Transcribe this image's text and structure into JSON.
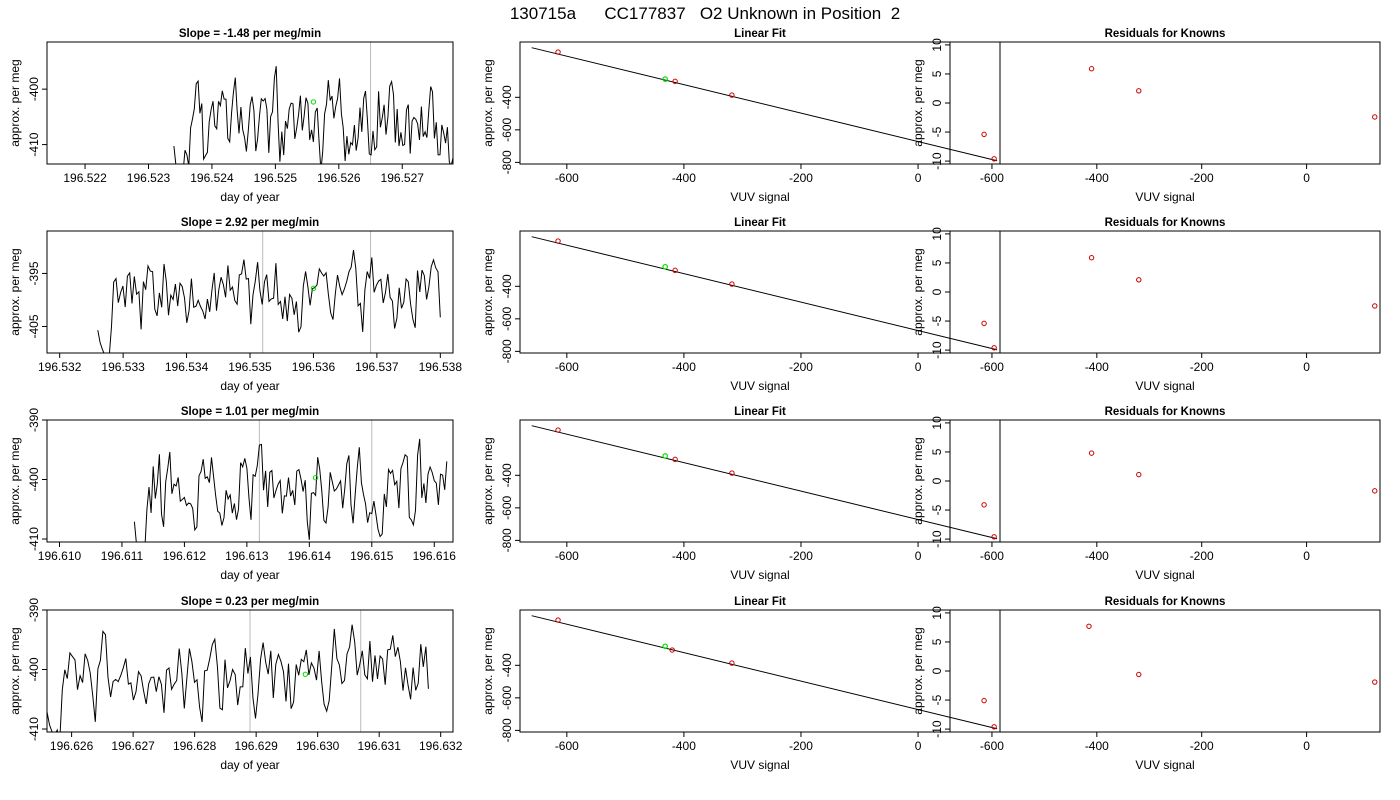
{
  "title": "130715a      CC177837   O2 Unknown in Position  2",
  "colors": {
    "line": "#000000",
    "known_point": "#cc0000",
    "unknown_point": "#00dd00",
    "vertical_marker": "#bbbbbb",
    "frame": "#000000"
  },
  "labels": {
    "time_x": "day of year",
    "y": "approx. per meg",
    "fit_x": "VUV signal",
    "fit_title": "Linear Fit",
    "resid_title": "Residuals for Knowns"
  },
  "chart_data": [
    {
      "type": "line",
      "title": "Slope =  -1.48  per meg/min",
      "xlabel": "day of year",
      "ylabel": "approx. per meg",
      "xlim": [
        196.5214,
        196.5278
      ],
      "ylim": [
        -413.5,
        -391.5
      ],
      "xticks": [
        "196.522",
        "196.523",
        "196.524",
        "196.525",
        "196.526",
        "196.527"
      ],
      "yticks": [
        -410,
        -400
      ],
      "start": 196.5234,
      "end": 196.5278,
      "base": -406,
      "amp": 9,
      "seed": 3,
      "markers": [
        196.5265
      ],
      "unknown_point": [
        196.5256,
        -402.3
      ]
    },
    {
      "type": "line",
      "title": "Slope =  2.92  per meg/min",
      "xlabel": "day of year",
      "ylabel": "approx. per meg",
      "xlim": [
        196.5318,
        196.5382
      ],
      "ylim": [
        -410,
        -387
      ],
      "xticks": [
        "196.532",
        "196.533",
        "196.534",
        "196.535",
        "196.536",
        "196.537",
        "196.538"
      ],
      "yticks": [
        -405,
        -395
      ],
      "start": 196.5326,
      "end": 196.538,
      "base": -399,
      "amp": 8,
      "seed": 7,
      "markers": [
        196.5352,
        196.5369
      ],
      "unknown_point": [
        196.536,
        -397.8
      ]
    },
    {
      "type": "line",
      "title": "Slope =  1.01  per meg/min",
      "xlabel": "day of year",
      "ylabel": "approx. per meg",
      "xlim": [
        196.6098,
        196.6163
      ],
      "ylim": [
        -410.5,
        -390
      ],
      "xticks": [
        "196.610",
        "196.611",
        "196.612",
        "196.613",
        "196.614",
        "196.615",
        "196.616"
      ],
      "yticks": [
        -410,
        -400,
        -390
      ],
      "start": 196.6112,
      "end": 196.6162,
      "base": -401.5,
      "amp": 8,
      "seed": 11,
      "markers": [
        196.6132,
        196.615
      ],
      "unknown_point": [
        196.6141,
        -399.7
      ]
    },
    {
      "type": "line",
      "title": "Slope =  0.23  per meg/min",
      "xlabel": "day of year",
      "ylabel": "approx. per meg",
      "xlim": [
        196.6256,
        196.6322
      ],
      "ylim": [
        -410.5,
        -390
      ],
      "xticks": [
        "196.626",
        "196.627",
        "196.628",
        "196.629",
        "196.630",
        "196.631",
        "196.632"
      ],
      "yticks": [
        -410,
        -400,
        -390
      ],
      "start": 196.6256,
      "end": 196.6318,
      "base": -400.5,
      "amp": 8,
      "seed": 19,
      "markers": [
        196.6289,
        196.6307
      ],
      "unknown_point": [
        196.6298,
        -400.8
      ]
    },
    {
      "type": "scatter",
      "title": "Linear Fit",
      "xlabel": "VUV signal",
      "ylabel": "approx. per meg",
      "xlim": [
        -680,
        140
      ],
      "ylim": [
        -810,
        -60
      ],
      "xticks": [
        -600,
        -400,
        -200,
        0
      ],
      "yticks": [
        -800,
        -600,
        -400
      ],
      "fit_line": [
        [
          -660,
          -95
        ],
        [
          135,
          -790
        ]
      ],
      "known_points": [
        [
          -615,
          -122
        ],
        [
          -415,
          -302
        ],
        [
          -318,
          -386
        ],
        [
          130,
          -778
        ]
      ],
      "unknown_points": [
        [
          -432,
          -288
        ]
      ]
    },
    {
      "type": "scatter",
      "title": "Linear Fit",
      "xlabel": "VUV signal",
      "ylabel": "approx. per meg",
      "xlim": [
        -680,
        140
      ],
      "ylim": [
        -810,
        -60
      ],
      "xticks": [
        -600,
        -400,
        -200,
        0
      ],
      "yticks": [
        -800,
        -600,
        -400
      ],
      "fit_line": [
        [
          -660,
          -95
        ],
        [
          135,
          -790
        ]
      ],
      "known_points": [
        [
          -615,
          -122
        ],
        [
          -415,
          -302
        ],
        [
          -318,
          -386
        ],
        [
          130,
          -778
        ]
      ],
      "unknown_points": [
        [
          -432,
          -280
        ]
      ]
    },
    {
      "type": "scatter",
      "title": "Linear Fit",
      "xlabel": "VUV signal",
      "ylabel": "approx. per meg",
      "xlim": [
        -680,
        140
      ],
      "ylim": [
        -810,
        -60
      ],
      "xticks": [
        -600,
        -400,
        -200,
        0
      ],
      "yticks": [
        -800,
        -600,
        -400
      ],
      "fit_line": [
        [
          -660,
          -95
        ],
        [
          135,
          -790
        ]
      ],
      "known_points": [
        [
          -615,
          -122
        ],
        [
          -415,
          -302
        ],
        [
          -318,
          -386
        ],
        [
          130,
          -778
        ]
      ],
      "unknown_points": [
        [
          -432,
          -281
        ]
      ]
    },
    {
      "type": "scatter",
      "title": "Linear Fit",
      "xlabel": "VUV signal",
      "ylabel": "approx. per meg",
      "xlim": [
        -680,
        140
      ],
      "ylim": [
        -810,
        -60
      ],
      "xticks": [
        -600,
        -400,
        -200,
        0
      ],
      "yticks": [
        -800,
        -600,
        -400
      ],
      "fit_line": [
        [
          -660,
          -95
        ],
        [
          135,
          -790
        ]
      ],
      "known_points": [
        [
          -615,
          -122
        ],
        [
          -420,
          -306
        ],
        [
          -318,
          -386
        ],
        [
          130,
          -778
        ]
      ],
      "unknown_points": [
        [
          -432,
          -283
        ]
      ]
    },
    {
      "type": "scatter",
      "title": "Residuals for Knowns",
      "xlabel": "VUV signal",
      "ylabel": "approx. per meg",
      "xlim": [
        -680,
        140
      ],
      "ylim": [
        -10.5,
        10.5
      ],
      "xticks": [
        -600,
        -400,
        -200,
        0
      ],
      "yticks": [
        -10,
        -5,
        0,
        5,
        10
      ],
      "points": [
        [
          -615,
          -5.4
        ],
        [
          -410,
          5.9
        ],
        [
          -320,
          2.1
        ],
        [
          130,
          -2.4
        ]
      ]
    },
    {
      "type": "scatter",
      "title": "Residuals for Knowns",
      "xlabel": "VUV signal",
      "ylabel": "approx. per meg",
      "xlim": [
        -680,
        140
      ],
      "ylim": [
        -10.5,
        10.5
      ],
      "xticks": [
        -600,
        -400,
        -200,
        0
      ],
      "yticks": [
        -10,
        -5,
        0,
        5,
        10
      ],
      "points": [
        [
          -615,
          -5.4
        ],
        [
          -410,
          5.9
        ],
        [
          -320,
          2.1
        ],
        [
          130,
          -2.4
        ]
      ]
    },
    {
      "type": "scatter",
      "title": "Residuals for Knowns",
      "xlabel": "VUV signal",
      "ylabel": "approx. per meg",
      "xlim": [
        -680,
        140
      ],
      "ylim": [
        -10.5,
        10.5
      ],
      "xticks": [
        -600,
        -400,
        -200,
        0
      ],
      "yticks": [
        -10,
        -5,
        0,
        5,
        10
      ],
      "points": [
        [
          -615,
          -4.1
        ],
        [
          -410,
          4.8
        ],
        [
          -320,
          1.1
        ],
        [
          130,
          -1.7
        ]
      ]
    },
    {
      "type": "scatter",
      "title": "Residuals for Knowns",
      "xlabel": "VUV signal",
      "ylabel": "approx. per meg",
      "xlim": [
        -680,
        140
      ],
      "ylim": [
        -10.5,
        10.5
      ],
      "xticks": [
        -600,
        -400,
        -200,
        0
      ],
      "yticks": [
        -10,
        -5,
        0,
        5,
        10
      ],
      "points": [
        [
          -615,
          -5.1
        ],
        [
          -415,
          7.7
        ],
        [
          -320,
          -0.6
        ],
        [
          130,
          -1.9
        ]
      ]
    }
  ]
}
